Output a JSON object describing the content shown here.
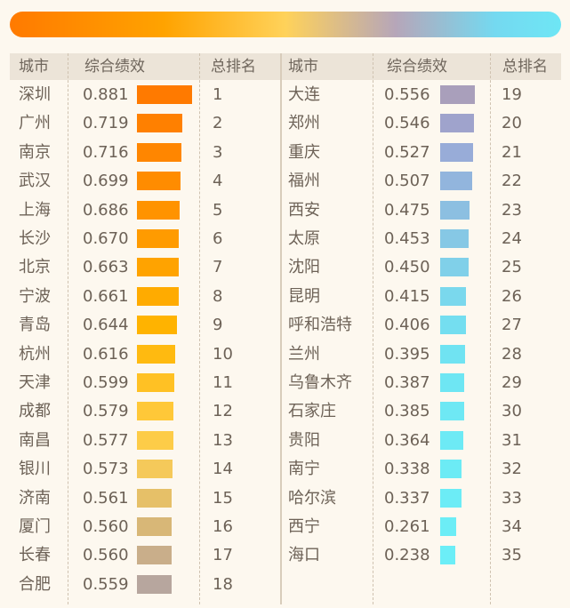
{
  "chart_data": {
    "type": "table",
    "headers": [
      "城市",
      "综合绩效",
      "总排名",
      "城市",
      "综合绩效",
      "总排名"
    ],
    "rows": [
      {
        "city": "深圳",
        "score": "0.881",
        "rank": "1",
        "color": "#ff7a00"
      },
      {
        "city": "广州",
        "score": "0.719",
        "rank": "2",
        "color": "#ff8000"
      },
      {
        "city": "南京",
        "score": "0.716",
        "rank": "3",
        "color": "#ff8600"
      },
      {
        "city": "武汉",
        "score": "0.699",
        "rank": "4",
        "color": "#ff8c00"
      },
      {
        "city": "上海",
        "score": "0.686",
        "rank": "5",
        "color": "#ff9300"
      },
      {
        "city": "长沙",
        "score": "0.670",
        "rank": "6",
        "color": "#ff9b00"
      },
      {
        "city": "北京",
        "score": "0.663",
        "rank": "7",
        "color": "#ffa300"
      },
      {
        "city": "宁波",
        "score": "0.661",
        "rank": "8",
        "color": "#ffab00"
      },
      {
        "city": "青岛",
        "score": "0.644",
        "rank": "9",
        "color": "#ffb300"
      },
      {
        "city": "杭州",
        "score": "0.616",
        "rank": "10",
        "color": "#ffba10"
      },
      {
        "city": "天津",
        "score": "0.599",
        "rank": "11",
        "color": "#ffc124"
      },
      {
        "city": "成都",
        "score": "0.579",
        "rank": "12",
        "color": "#ffc838"
      },
      {
        "city": "南昌",
        "score": "0.577",
        "rank": "13",
        "color": "#fdcc48"
      },
      {
        "city": "银川",
        "score": "0.573",
        "rank": "14",
        "color": "#f5c95a"
      },
      {
        "city": "济南",
        "score": "0.561",
        "rank": "15",
        "color": "#e6c068"
      },
      {
        "city": "厦门",
        "score": "0.560",
        "rank": "16",
        "color": "#d8b777"
      },
      {
        "city": "长春",
        "score": "0.560",
        "rank": "17",
        "color": "#c9ae8a"
      },
      {
        "city": "合肥",
        "score": "0.559",
        "rank": "18",
        "color": "#b7a69e"
      },
      {
        "city": "大连",
        "score": "0.556",
        "rank": "19",
        "color": "#a99fbb"
      },
      {
        "city": "郑州",
        "score": "0.546",
        "rank": "20",
        "color": "#9fa3cc"
      },
      {
        "city": "重庆",
        "score": "0.527",
        "rank": "21",
        "color": "#98acd8"
      },
      {
        "city": "福州",
        "score": "0.507",
        "rank": "22",
        "color": "#92b5dd"
      },
      {
        "city": "西安",
        "score": "0.475",
        "rank": "23",
        "color": "#8cbfe1"
      },
      {
        "city": "太原",
        "score": "0.453",
        "rank": "24",
        "color": "#86c8e5"
      },
      {
        "city": "沈阳",
        "score": "0.450",
        "rank": "25",
        "color": "#80d0e9"
      },
      {
        "city": "昆明",
        "score": "0.415",
        "rank": "26",
        "color": "#7ad8ed"
      },
      {
        "city": "呼和浩特",
        "score": "0.406",
        "rank": "27",
        "color": "#74def0"
      },
      {
        "city": "兰州",
        "score": "0.395",
        "rank": "28",
        "color": "#70e3f2"
      },
      {
        "city": "乌鲁木齐",
        "score": "0.387",
        "rank": "29",
        "color": "#6ee6f3"
      },
      {
        "city": "石家庄",
        "score": "0.385",
        "rank": "30",
        "color": "#6ee8f4"
      },
      {
        "city": "贵阳",
        "score": "0.364",
        "rank": "31",
        "color": "#6deaf5"
      },
      {
        "city": "南宁",
        "score": "0.338",
        "rank": "32",
        "color": "#6cebf5"
      },
      {
        "city": "哈尔滨",
        "score": "0.337",
        "rank": "33",
        "color": "#6cecf6"
      },
      {
        "city": "西宁",
        "score": "0.261",
        "rank": "34",
        "color": "#6cedf6"
      },
      {
        "city": "海口",
        "score": "0.238",
        "rank": "35",
        "color": "#6ceef7"
      }
    ]
  }
}
